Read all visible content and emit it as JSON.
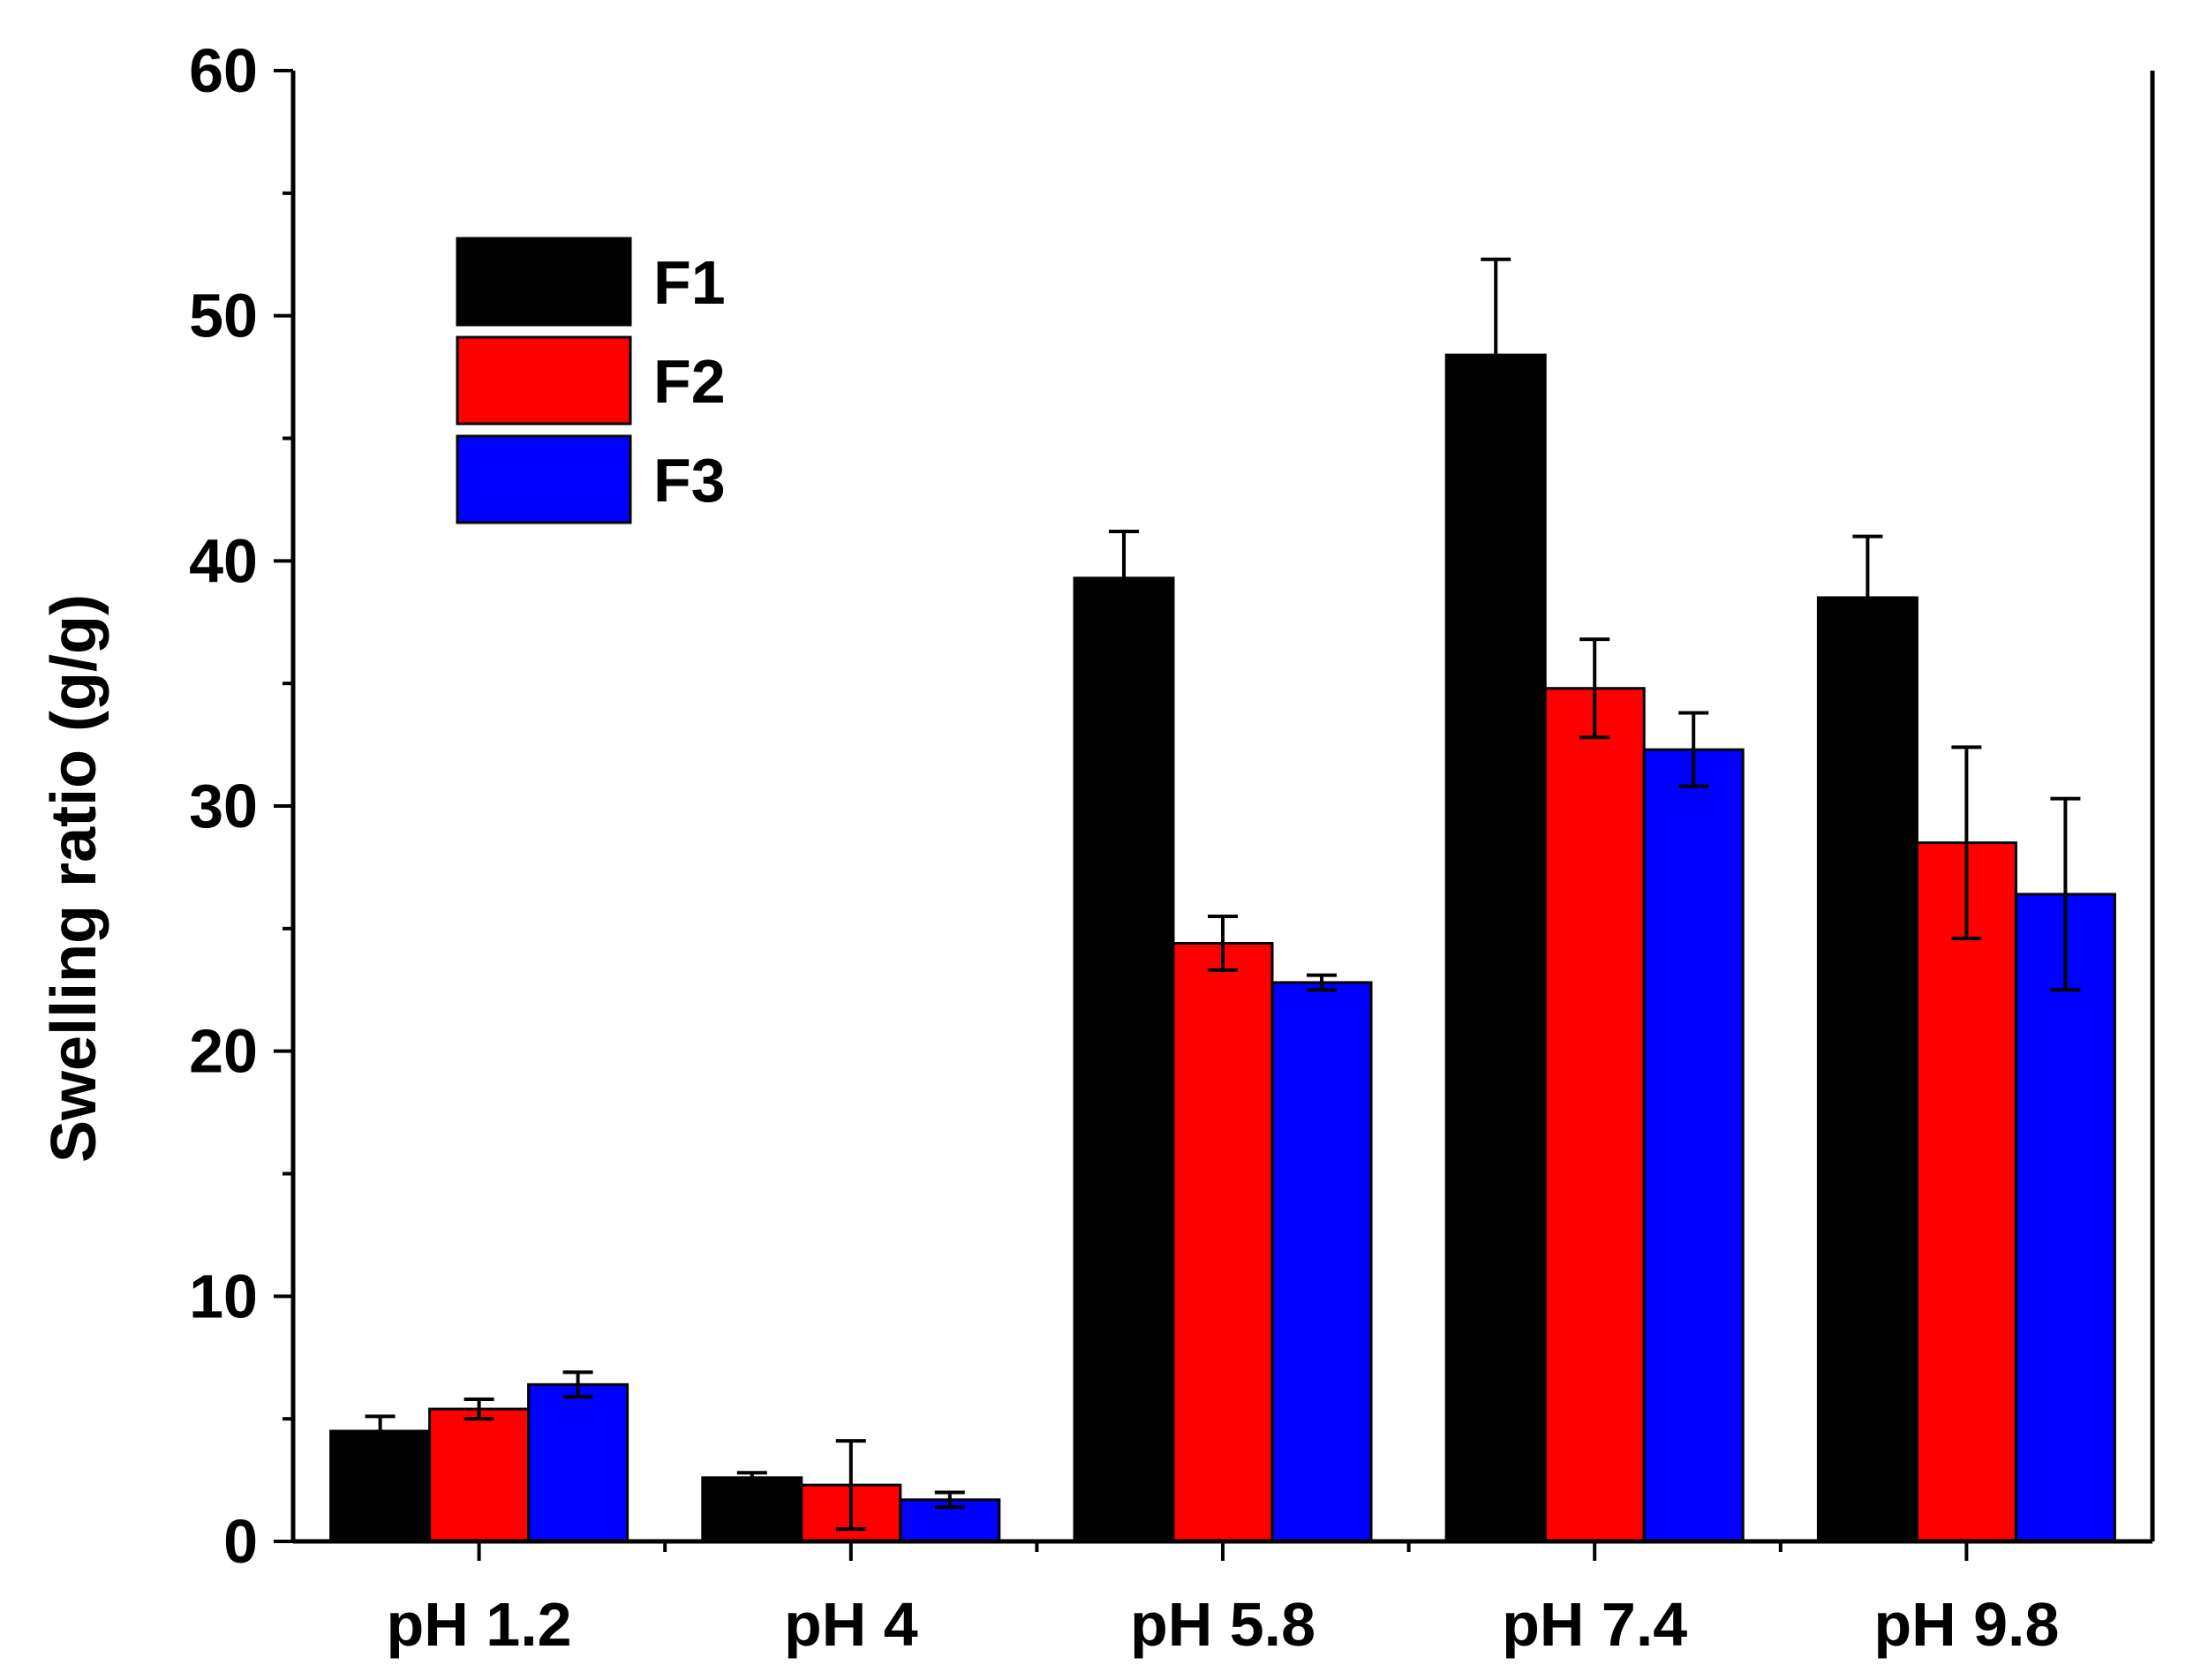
{
  "chart_data": {
    "type": "bar",
    "title": "",
    "xlabel": "",
    "ylabel": "Swelling ratio (g/g)",
    "ylim": [
      0,
      60
    ],
    "yticks": [
      0,
      10,
      20,
      30,
      40,
      50,
      60
    ],
    "ytick_labels": [
      "0",
      "10",
      "20",
      "30",
      "40",
      "50",
      "60"
    ],
    "categories": [
      "pH 1.2",
      "pH 4",
      "pH 5.8",
      "pH 7.4",
      "pH 9.8"
    ],
    "legend_position": "top-left",
    "series": [
      {
        "name": "F1",
        "color": "#000000",
        "values": [
          4.5,
          2.6,
          39.3,
          48.4,
          38.5
        ],
        "errors": [
          0.6,
          0.2,
          1.9,
          3.9,
          2.5
        ]
      },
      {
        "name": "F2",
        "color": "#ff0000",
        "values": [
          5.4,
          2.3,
          24.4,
          34.8,
          28.5
        ],
        "errors": [
          0.4,
          1.8,
          1.1,
          2.0,
          3.9
        ]
      },
      {
        "name": "F3",
        "color": "#0000ff",
        "values": [
          6.4,
          1.7,
          22.8,
          32.3,
          26.4
        ],
        "errors": [
          0.5,
          0.3,
          0.3,
          1.5,
          3.9
        ]
      }
    ]
  }
}
